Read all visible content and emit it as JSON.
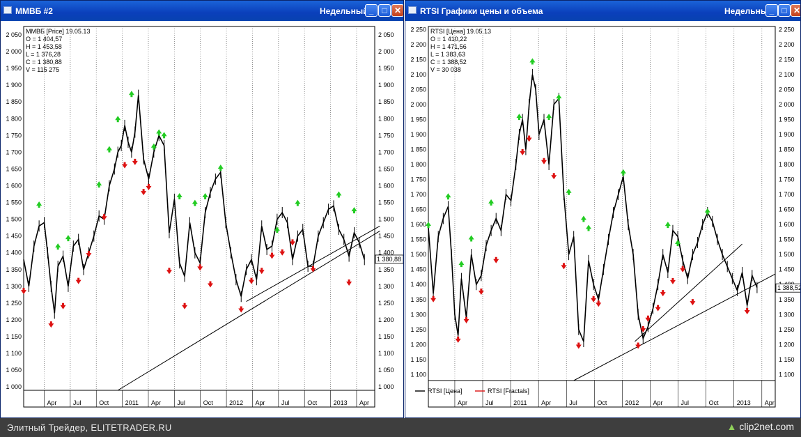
{
  "window1": {
    "title": "ММВБ #2",
    "period": "Недельный",
    "info": [
      "ММВБ [Price] 19.05.13",
      "O = 1 404,57",
      "H = 1 453,58",
      "L = 1 376,28",
      "C = 1 380,88",
      "V = 115 275"
    ],
    "last_price": "1 380,88"
  },
  "window2": {
    "title": "RTSI Графики цены и объема",
    "period": "Недельный",
    "info": [
      "RTSI [Цена] 19.05.13",
      "O = 1 410,22",
      "H = 1 471,56",
      "L = 1 383,63",
      "C = 1 388,52",
      "V = 30 038"
    ],
    "last_price": "1 388,52",
    "legend": [
      "RTSI [Цена]",
      "RTSI [Fractals]"
    ]
  },
  "footer": {
    "credit": "Элитный Трейдер, ELITETRADER.RU",
    "logo": "clip2net.com"
  },
  "colors": {
    "up_fractal": "#22cc22",
    "down_fractal": "#dd1111",
    "price_line": "#000000",
    "titlebar": "#0a3fbb"
  },
  "icons": [
    "minimize-icon",
    "maximize-icon",
    "close-icon",
    "window-icon"
  ],
  "chart_data": [
    {
      "type": "line",
      "title": "ММВБ [Price] 19.05.13",
      "y_ticks": [
        "1 000",
        "1 050",
        "1 100",
        "1 150",
        "1 200",
        "1 250",
        "1 300",
        "1 350",
        "1 400",
        "1 450",
        "1 500",
        "1 550",
        "1 600",
        "1 650",
        "1 700",
        "1 750",
        "1 800",
        "1 850",
        "1 900",
        "1 950",
        "2 000",
        "2 050"
      ],
      "ylim": [
        990,
        2075
      ],
      "x_tick_labels": [
        "Apr",
        "Jul",
        "Oct",
        "2011",
        "Apr",
        "Jul",
        "Oct",
        "2012",
        "Apr",
        "Jul",
        "Oct",
        "2013",
        "Apr"
      ],
      "series": [
        {
          "x": [
            0,
            3,
            6,
            9,
            12,
            14,
            16,
            18,
            20,
            23,
            26,
            29,
            32,
            35,
            38,
            41,
            44,
            47,
            50,
            53,
            55,
            57,
            59,
            61,
            63,
            65,
            67,
            70,
            73,
            76,
            79,
            82,
            85,
            88,
            91,
            94,
            97,
            100,
            103,
            106,
            109,
            112,
            115,
            118,
            121,
            124,
            127,
            130,
            133,
            136,
            139,
            142,
            145,
            148,
            151,
            154,
            157,
            160,
            163,
            166,
            169,
            172,
            175,
            178,
            181,
            184,
            187,
            190,
            193,
            196,
            199
          ],
          "y": [
            1380,
            1300,
            1420,
            1480,
            1490,
            1400,
            1300,
            1220,
            1360,
            1390,
            1300,
            1420,
            1440,
            1350,
            1400,
            1450,
            1510,
            1500,
            1600,
            1650,
            1700,
            1720,
            1780,
            1730,
            1700,
            1760,
            1870,
            1680,
            1620,
            1700,
            1750,
            1720,
            1460,
            1560,
            1370,
            1330,
            1490,
            1400,
            1370,
            1520,
            1580,
            1620,
            1640,
            1490,
            1400,
            1320,
            1270,
            1350,
            1380,
            1320,
            1480,
            1410,
            1420,
            1500,
            1520,
            1490,
            1380,
            1450,
            1470,
            1360,
            1360,
            1450,
            1490,
            1530,
            1540,
            1470,
            1440,
            1390,
            1460,
            1430,
            1380
          ],
          "up_fractals": [
            {
              "x": 9,
              "y": 1545
            },
            {
              "x": 20,
              "y": 1420
            },
            {
              "x": 26,
              "y": 1445
            },
            {
              "x": 44,
              "y": 1605
            },
            {
              "x": 50,
              "y": 1710
            },
            {
              "x": 55,
              "y": 1800
            },
            {
              "x": 63,
              "y": 1875
            },
            {
              "x": 76,
              "y": 1718
            },
            {
              "x": 79,
              "y": 1760
            },
            {
              "x": 82,
              "y": 1752
            },
            {
              "x": 91,
              "y": 1570
            },
            {
              "x": 100,
              "y": 1550
            },
            {
              "x": 106,
              "y": 1570
            },
            {
              "x": 115,
              "y": 1655
            },
            {
              "x": 148,
              "y": 1470
            },
            {
              "x": 160,
              "y": 1550
            },
            {
              "x": 184,
              "y": 1575
            },
            {
              "x": 193,
              "y": 1528
            }
          ],
          "down_fractals": [
            {
              "x": 0,
              "y": 1285
            },
            {
              "x": 16,
              "y": 1185
            },
            {
              "x": 23,
              "y": 1240
            },
            {
              "x": 32,
              "y": 1315
            },
            {
              "x": 38,
              "y": 1395
            },
            {
              "x": 47,
              "y": 1505
            },
            {
              "x": 59,
              "y": 1660
            },
            {
              "x": 65,
              "y": 1670
            },
            {
              "x": 70,
              "y": 1580
            },
            {
              "x": 73,
              "y": 1595
            },
            {
              "x": 85,
              "y": 1345
            },
            {
              "x": 94,
              "y": 1240
            },
            {
              "x": 103,
              "y": 1355
            },
            {
              "x": 109,
              "y": 1305
            },
            {
              "x": 127,
              "y": 1230
            },
            {
              "x": 133,
              "y": 1315
            },
            {
              "x": 139,
              "y": 1345
            },
            {
              "x": 145,
              "y": 1390
            },
            {
              "x": 151,
              "y": 1400
            },
            {
              "x": 157,
              "y": 1430
            },
            {
              "x": 169,
              "y": 1350
            },
            {
              "x": 190,
              "y": 1310
            }
          ],
          "trendlines": [
            {
              "x0": 55,
              "y0": 990,
              "x1": 208,
              "y1": 1465
            },
            {
              "x0": 130,
              "y0": 1255,
              "x1": 208,
              "y1": 1480
            }
          ]
        }
      ]
    },
    {
      "type": "line",
      "title": "RTSI [Цена] 19.05.13",
      "y_ticks": [
        "1 100",
        "1 150",
        "1 200",
        "1 250",
        "1 300",
        "1 350",
        "1 400",
        "1 450",
        "1 500",
        "1 550",
        "1 600",
        "1 650",
        "1 700",
        "1 750",
        "1 800",
        "1 850",
        "1 900",
        "1 950",
        "2 000",
        "2 050",
        "2 100",
        "2 150",
        "2 200",
        "2 250"
      ],
      "ylim": [
        1080,
        2260
      ],
      "x_tick_labels": [
        "Apr",
        "Jul",
        "2011",
        "Apr",
        "Jul",
        "Oct",
        "2012",
        "Apr",
        "Jul",
        "Oct",
        "2013",
        "Apr"
      ],
      "series": [
        {
          "x": [
            0,
            3,
            6,
            9,
            12,
            14,
            16,
            18,
            20,
            23,
            26,
            29,
            32,
            35,
            38,
            41,
            44,
            47,
            50,
            53,
            55,
            57,
            59,
            61,
            63,
            65,
            67,
            70,
            73,
            76,
            79,
            82,
            85,
            88,
            91,
            94,
            97,
            100,
            103,
            106,
            109,
            112,
            115,
            118,
            121,
            124,
            127,
            130,
            133,
            136,
            139,
            142,
            145,
            148,
            151,
            154,
            157,
            160,
            163,
            166,
            169,
            172,
            175,
            178,
            181,
            184,
            187,
            190,
            193,
            196,
            199
          ],
          "y": [
            1590,
            1370,
            1560,
            1620,
            1660,
            1500,
            1300,
            1230,
            1420,
            1290,
            1500,
            1400,
            1430,
            1530,
            1580,
            1620,
            1580,
            1700,
            1680,
            1800,
            1900,
            1950,
            1850,
            2000,
            2100,
            2050,
            1900,
            1950,
            1800,
            2000,
            2020,
            1700,
            1500,
            1560,
            1250,
            1210,
            1480,
            1400,
            1350,
            1450,
            1550,
            1640,
            1700,
            1760,
            1600,
            1500,
            1300,
            1220,
            1260,
            1320,
            1400,
            1500,
            1440,
            1580,
            1560,
            1480,
            1420,
            1500,
            1540,
            1600,
            1640,
            1610,
            1550,
            1500,
            1460,
            1420,
            1380,
            1440,
            1330,
            1430,
            1390
          ],
          "up_fractals": [
            {
              "x": 0,
              "y": 1600
            },
            {
              "x": 12,
              "y": 1695
            },
            {
              "x": 20,
              "y": 1470
            },
            {
              "x": 26,
              "y": 1555
            },
            {
              "x": 38,
              "y": 1675
            },
            {
              "x": 55,
              "y": 1960
            },
            {
              "x": 63,
              "y": 2145
            },
            {
              "x": 73,
              "y": 1960
            },
            {
              "x": 79,
              "y": 2025
            },
            {
              "x": 85,
              "y": 1710
            },
            {
              "x": 94,
              "y": 1620
            },
            {
              "x": 97,
              "y": 1590
            },
            {
              "x": 118,
              "y": 1775
            },
            {
              "x": 145,
              "y": 1600
            },
            {
              "x": 151,
              "y": 1540
            },
            {
              "x": 169,
              "y": 1645
            }
          ],
          "down_fractals": [
            {
              "x": 3,
              "y": 1350
            },
            {
              "x": 18,
              "y": 1215
            },
            {
              "x": 23,
              "y": 1280
            },
            {
              "x": 32,
              "y": 1375
            },
            {
              "x": 41,
              "y": 1480
            },
            {
              "x": 57,
              "y": 1840
            },
            {
              "x": 61,
              "y": 1885
            },
            {
              "x": 70,
              "y": 1810
            },
            {
              "x": 76,
              "y": 1760
            },
            {
              "x": 82,
              "y": 1460
            },
            {
              "x": 91,
              "y": 1195
            },
            {
              "x": 100,
              "y": 1350
            },
            {
              "x": 103,
              "y": 1335
            },
            {
              "x": 127,
              "y": 1195
            },
            {
              "x": 130,
              "y": 1250
            },
            {
              "x": 133,
              "y": 1285
            },
            {
              "x": 139,
              "y": 1320
            },
            {
              "x": 142,
              "y": 1370
            },
            {
              "x": 148,
              "y": 1410
            },
            {
              "x": 154,
              "y": 1450
            },
            {
              "x": 160,
              "y": 1340
            },
            {
              "x": 193,
              "y": 1310
            }
          ],
          "trendlines": [
            {
              "x0": 88,
              "y0": 1080,
              "x1": 210,
              "y1": 1435
            },
            {
              "x0": 125,
              "y0": 1210,
              "x1": 190,
              "y1": 1535
            }
          ]
        }
      ]
    }
  ]
}
